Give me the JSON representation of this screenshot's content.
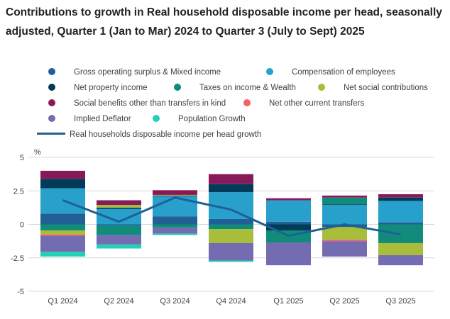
{
  "chart_data": {
    "type": "stacked-bar-with-line",
    "title": "Contributions to growth in Real household disposable income per head, seasonally adjusted, Quarter 1 (Jan to Mar) 2024 to Quarter 3 (July to Sept) 2025",
    "ylabel": "%",
    "ylim": [
      -5,
      5
    ],
    "yticks": [
      5,
      2.5,
      0,
      -2.5,
      -5
    ],
    "ytick_labels": [
      "5",
      "2.5",
      "0",
      "-2.5",
      "-5"
    ],
    "grid": true,
    "legend_position": "top",
    "categories": [
      "Q1 2024",
      "Q2 2024",
      "Q3 2024",
      "Q4 2024",
      "Q1 2025",
      "Q2 2025",
      "Q3 2025"
    ],
    "series": [
      {
        "name": "Gross operating surplus & Mixed income",
        "color": "#206095",
        "values": [
          0.8,
          -0.1,
          0.6,
          0.4,
          0.2,
          -0.2,
          0.15
        ]
      },
      {
        "name": "Compensation of employees",
        "color": "#27a0cc",
        "values": [
          1.9,
          1.15,
          1.5,
          2.0,
          1.6,
          1.45,
          1.6
        ]
      },
      {
        "name": "Net property income",
        "color": "#003c57",
        "values": [
          0.7,
          0.1,
          0.05,
          0.6,
          -0.45,
          0.05,
          0.25
        ]
      },
      {
        "name": "Taxes on income & Wealth",
        "color": "#118c7b",
        "values": [
          -0.45,
          -0.7,
          -0.25,
          -0.35,
          -0.9,
          0.5,
          -1.4
        ]
      },
      {
        "name": "Net social contributions",
        "color": "#a8bd3a",
        "values": [
          -0.3,
          0.2,
          0.05,
          -1.05,
          0,
          -0.95,
          -0.9
        ]
      },
      {
        "name": "Social benefits other than transfers in kind",
        "color": "#871a5b",
        "values": [
          0.6,
          0.35,
          0.35,
          0.75,
          0.15,
          0.15,
          0.25
        ]
      },
      {
        "name": "Net other current transfers",
        "color": "#f66068",
        "values": [
          -0.1,
          0,
          0,
          0,
          0,
          -0.1,
          0
        ]
      },
      {
        "name": "Implied Deflator",
        "color": "#746cb1",
        "values": [
          -1.2,
          -0.7,
          -0.45,
          -1.3,
          -1.7,
          -1.15,
          -0.75
        ]
      },
      {
        "name": "Population Growth",
        "color": "#22d0b6",
        "values": [
          -0.35,
          -0.3,
          -0.1,
          -0.1,
          0,
          0,
          0
        ]
      }
    ],
    "line": {
      "name": "Real households disposable income per head growth",
      "color": "#206095",
      "values": [
        1.8,
        0.2,
        2.0,
        1.1,
        -0.85,
        0.0,
        -0.75
      ]
    }
  }
}
